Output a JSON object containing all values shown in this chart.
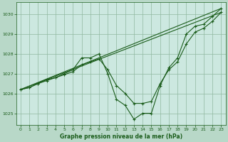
{
  "title": "Graphe pression niveau de la mer (hPa)",
  "bg_color": "#b8d8c8",
  "plot_bg_color": "#cce8e0",
  "line_color": "#1a5c1a",
  "grid_color": "#90b8a0",
  "text_color": "#1a5c1a",
  "xlim": [
    -0.5,
    23.5
  ],
  "ylim": [
    1024.4,
    1030.6
  ],
  "yticks": [
    1025,
    1026,
    1027,
    1028,
    1029,
    1030
  ],
  "xticks": [
    0,
    1,
    2,
    3,
    4,
    5,
    6,
    7,
    8,
    9,
    10,
    11,
    12,
    13,
    14,
    15,
    16,
    17,
    18,
    19,
    20,
    21,
    22,
    23
  ],
  "series_straight1": {
    "x": [
      0,
      23
    ],
    "y": [
      1026.2,
      1030.3
    ]
  },
  "series_straight2": {
    "x": [
      0,
      23
    ],
    "y": [
      1026.2,
      1030.1
    ]
  },
  "series_main": {
    "x": [
      0,
      1,
      2,
      3,
      4,
      5,
      6,
      7,
      8,
      9,
      10,
      11,
      12,
      13,
      14,
      15,
      16,
      17,
      18,
      19,
      20,
      21,
      22,
      23
    ],
    "y": [
      1026.2,
      1026.3,
      1026.5,
      1026.7,
      1026.8,
      1027.0,
      1027.2,
      1027.8,
      1027.8,
      1028.0,
      1027.0,
      1025.7,
      1025.4,
      1024.7,
      1025.0,
      1025.0,
      1026.4,
      1027.3,
      1027.8,
      1029.0,
      1029.4,
      1029.5,
      1029.9,
      1030.3
    ]
  },
  "series_smooth": {
    "x": [
      0,
      1,
      2,
      3,
      4,
      5,
      6,
      7,
      8,
      9,
      10,
      11,
      12,
      13,
      14,
      15,
      16,
      17,
      18,
      19,
      20,
      21,
      22,
      23
    ],
    "y": [
      1026.2,
      1026.3,
      1026.5,
      1026.65,
      1026.8,
      1026.95,
      1027.1,
      1027.45,
      1027.6,
      1027.75,
      1027.2,
      1026.4,
      1026.0,
      1025.5,
      1025.5,
      1025.6,
      1026.5,
      1027.2,
      1027.6,
      1028.5,
      1029.1,
      1029.3,
      1029.65,
      1030.1
    ]
  }
}
